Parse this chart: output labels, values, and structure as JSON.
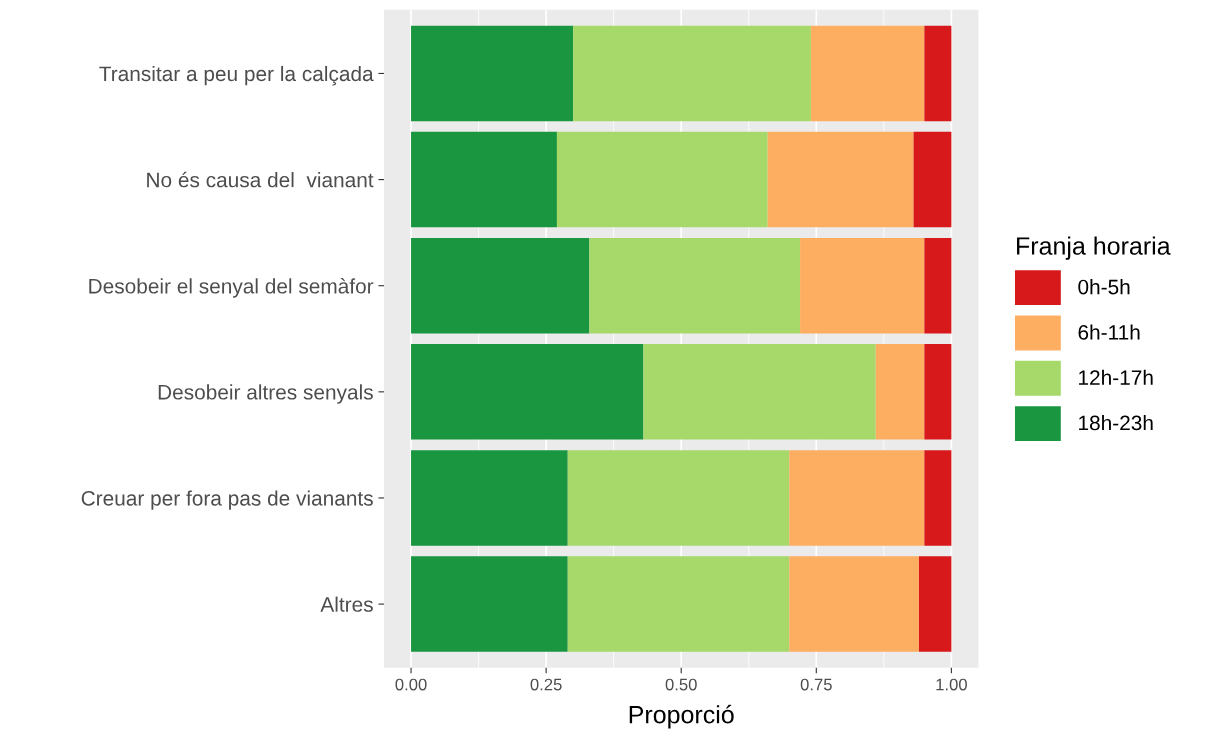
{
  "chart_data": {
    "type": "bar",
    "orientation": "horizontal",
    "stacked": true,
    "xlabel": "Proporció",
    "legend_title": "Franja horaria",
    "legend": "right",
    "grid": "x",
    "categories": [
      "Transitar a peu per la calçada",
      "No és causa del  vianant",
      "Desobeir el senyal del semàfor",
      "Desobeir altres senyals",
      "Creuar per fora pas de vianants",
      "Altres"
    ],
    "xlim": [
      -0.05,
      1.05
    ],
    "xticks": [
      {
        "value": 0,
        "label": "0.00"
      },
      {
        "value": 0.25,
        "label": "0.25"
      },
      {
        "value": 0.5,
        "label": "0.50"
      },
      {
        "value": 0.75,
        "label": "0.75"
      },
      {
        "value": 1,
        "label": "1.00"
      }
    ],
    "series": [
      {
        "name": "18h-23h",
        "color": "#1a9641",
        "values": [
          0.3,
          0.27,
          0.33,
          0.43,
          0.29,
          0.29
        ]
      },
      {
        "name": "12h-17h",
        "color": "#a6d96a",
        "values": [
          0.44,
          0.39,
          0.39,
          0.43,
          0.41,
          0.41
        ]
      },
      {
        "name": "6h-11h",
        "color": "#fdae61",
        "values": [
          0.21,
          0.27,
          0.23,
          0.09,
          0.25,
          0.24
        ]
      },
      {
        "name": "0h-5h",
        "color": "#d7191c",
        "values": [
          0.05,
          0.07,
          0.05,
          0.05,
          0.05,
          0.06
        ]
      }
    ]
  }
}
